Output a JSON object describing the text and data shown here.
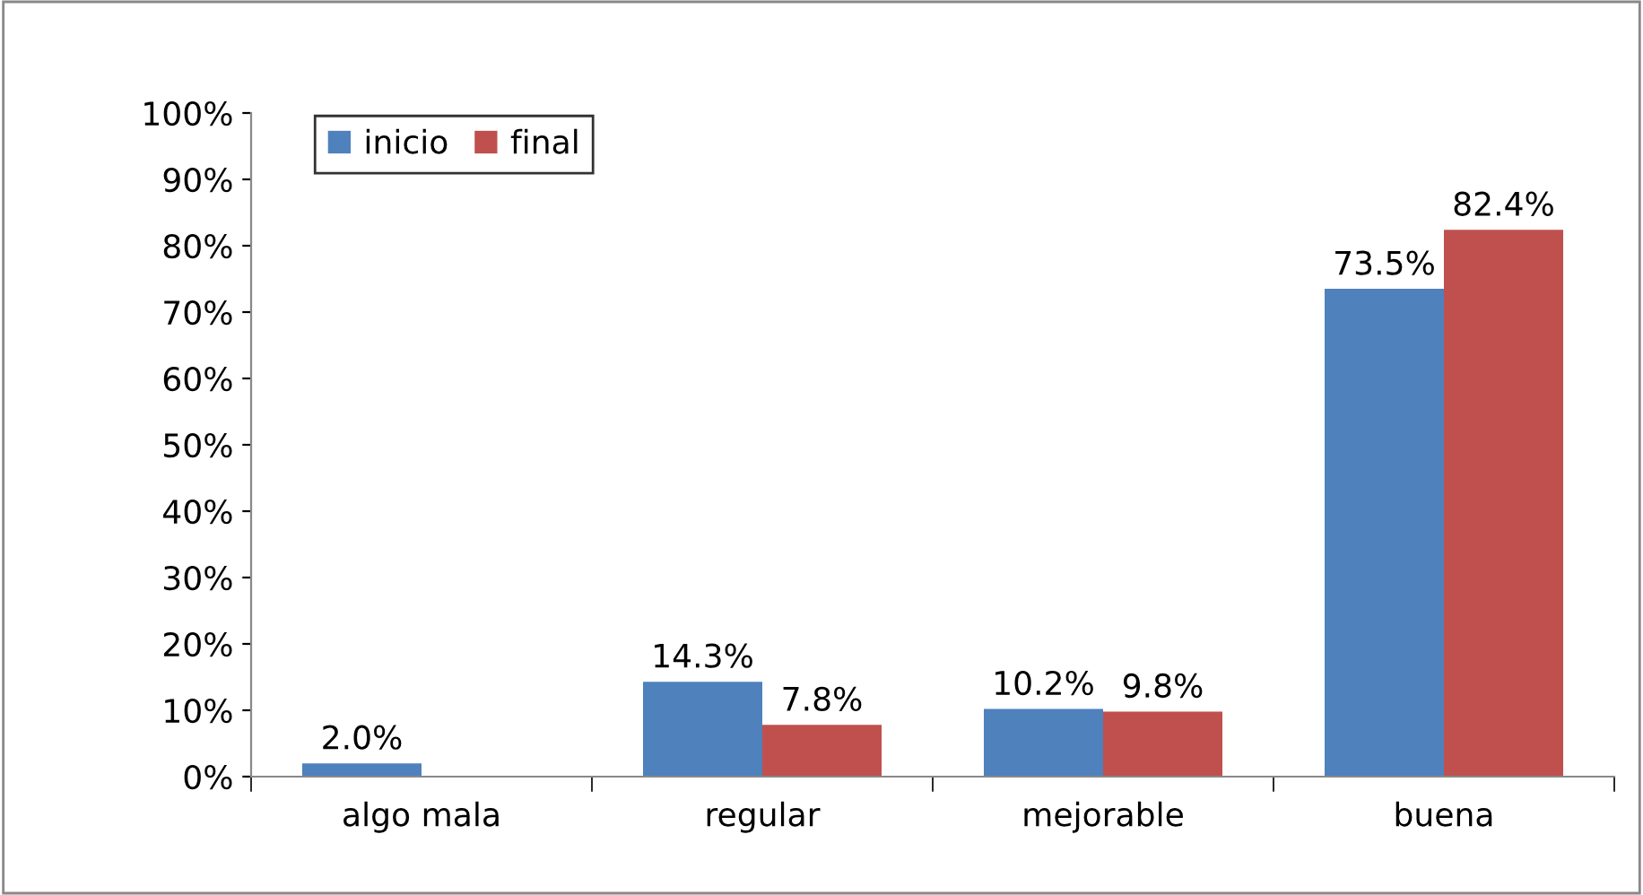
{
  "chart_data": {
    "type": "bar",
    "categories": [
      "algo mala",
      "regular",
      "mejorable",
      "buena"
    ],
    "series": [
      {
        "name": "inicio",
        "color": "#4f81bd",
        "values": [
          2.0,
          14.3,
          10.2,
          73.5
        ],
        "value_labels": [
          "2.0%",
          "14.3%",
          "10.2%",
          "73.5%"
        ]
      },
      {
        "name": "final",
        "color": "#c0504d",
        "values": [
          null,
          7.8,
          9.8,
          82.4
        ],
        "value_labels": [
          null,
          "7.8%",
          "9.8%",
          "82.4%"
        ]
      }
    ],
    "ylim": [
      0,
      100
    ],
    "yticks": [
      {
        "value": 0,
        "label": "0%"
      },
      {
        "value": 10,
        "label": "10%"
      },
      {
        "value": 20,
        "label": "20%"
      },
      {
        "value": 30,
        "label": "30%"
      },
      {
        "value": 40,
        "label": "40%"
      },
      {
        "value": 50,
        "label": "50%"
      },
      {
        "value": 60,
        "label": "60%"
      },
      {
        "value": 70,
        "label": "70%"
      },
      {
        "value": 80,
        "label": "80%"
      },
      {
        "value": 90,
        "label": "90%"
      },
      {
        "value": 100,
        "label": "100%"
      }
    ],
    "grid": false,
    "legend": "top left"
  }
}
